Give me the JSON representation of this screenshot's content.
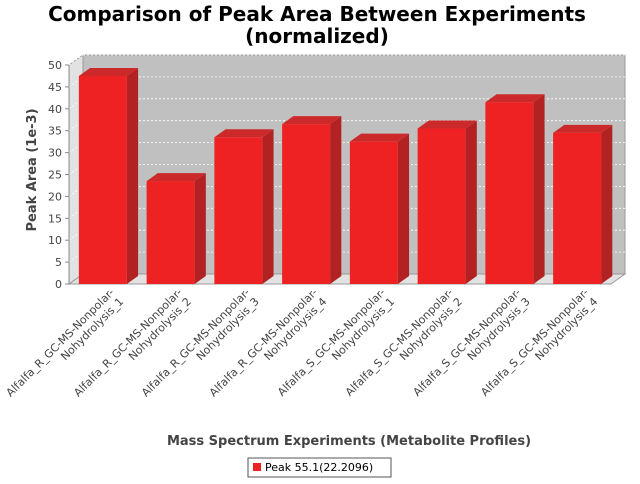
{
  "chart_data": {
    "type": "bar",
    "title_line1": "Comparison of Peak Area Between Experiments",
    "title_line2": "(normalized)",
    "xlabel": "Mass Spectrum Experiments (Metabolite Profiles)",
    "ylabel": "Peak Area (1e-3)",
    "ylim": [
      0,
      50
    ],
    "yticks": [
      0,
      5,
      10,
      15,
      20,
      25,
      30,
      35,
      40,
      45,
      50
    ],
    "categories": [
      [
        "Alfalfa_R_GC-MS-Nonpolar-",
        "Nohydrolysis_1"
      ],
      [
        "Alfalfa_R_GC-MS-Nonpolar-",
        "Nohydrolysis_2"
      ],
      [
        "Alfalfa_R_GC-MS-Nonpolar-",
        "Nohydrolysis_3"
      ],
      [
        "Alfalfa_R_GC-MS-Nonpolar-",
        "Nohydrolysis_4"
      ],
      [
        "Alfalfa_S_GC-MS-Nonpolar-",
        "Nohydrolysis_1"
      ],
      [
        "Alfalfa_S_GC-MS-Nonpolar-",
        "Nohydrolysis_2"
      ],
      [
        "Alfalfa_S_GC-MS-Nonpolar-",
        "Nohydrolysis_3"
      ],
      [
        "Alfalfa_S_GC-MS-Nonpolar-",
        "Nohydrolysis_4"
      ]
    ],
    "series": [
      {
        "name": "Peak 55.1(22.2096)",
        "color": "#ee2222",
        "values": [
          47.5,
          23.5,
          33.5,
          36.5,
          32.5,
          35.5,
          41.5,
          34.5
        ]
      }
    ],
    "grid": true,
    "legend_position": "bottom"
  }
}
